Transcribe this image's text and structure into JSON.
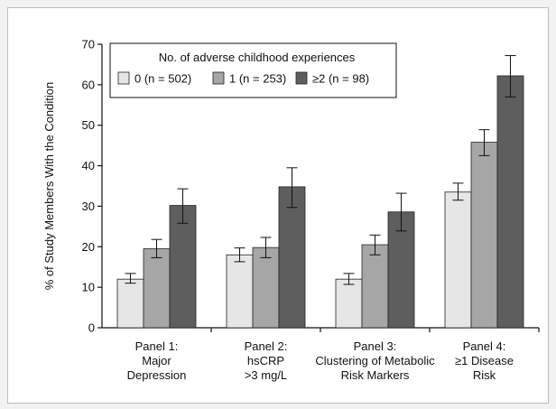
{
  "chart_data": {
    "type": "bar",
    "ylabel": "% of Study Members With the Condition",
    "ylim": [
      0,
      70
    ],
    "yticks": [
      0,
      10,
      20,
      30,
      40,
      50,
      60,
      70
    ],
    "categories": [
      [
        "Panel 1:",
        "Major",
        "Depression"
      ],
      [
        "Panel 2:",
        "hsCRP",
        ">3 mg/L"
      ],
      [
        "Panel 3:",
        "Clustering of Metabolic",
        "Risk Markers"
      ],
      [
        "Panel 4:",
        "≥1 Disease",
        "Risk"
      ]
    ],
    "legend": {
      "title": "No. of adverse childhood experiences",
      "placement": "top-left"
    },
    "series": [
      {
        "name": "0 (n = 502)",
        "color": "#e6e6e6",
        "values": [
          12,
          18,
          12,
          33.5
        ],
        "err_low": [
          11,
          16.3,
          10.7,
          31.5
        ],
        "err_high": [
          13.4,
          19.7,
          13.4,
          35.7
        ]
      },
      {
        "name": "1 (n = 253)",
        "color": "#a6a6a6",
        "values": [
          19.5,
          19.8,
          20.5,
          45.8
        ],
        "err_low": [
          17.3,
          17.3,
          18,
          42.5
        ],
        "err_high": [
          21.8,
          22.3,
          22.9,
          48.9
        ]
      },
      {
        "name": "≥2 (n = 98)",
        "color": "#5e5e5e",
        "values": [
          30.2,
          34.8,
          28.6,
          62.2
        ],
        "err_low": [
          25.8,
          29.7,
          23.9,
          57
        ],
        "err_high": [
          34.3,
          39.5,
          33.2,
          67.2
        ]
      }
    ]
  }
}
